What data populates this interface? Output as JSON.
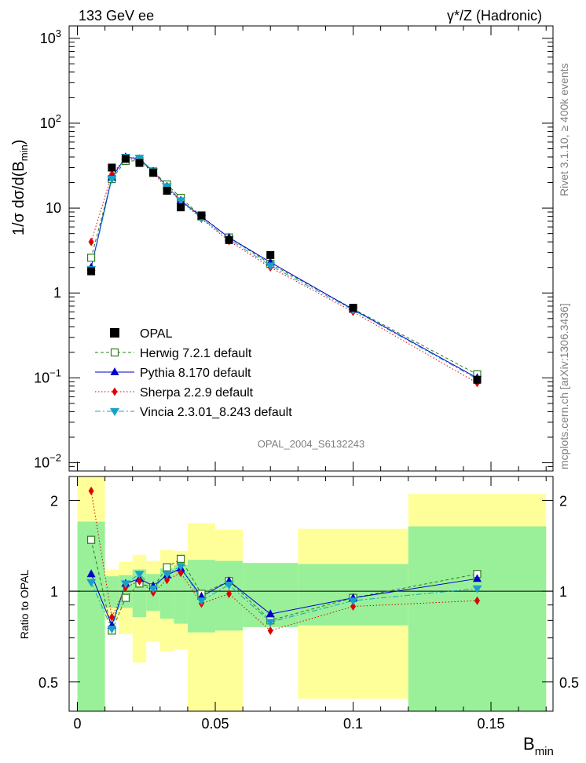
{
  "header": {
    "left": "133 GeV ee",
    "right": "γ*/Z (Hadronic)"
  },
  "side": {
    "rivet": "Rivet 3.1.10, ≥ 400k events",
    "source": "mcplots.cern.ch [arXiv:1306.3436]"
  },
  "analysis_label": "OPAL_2004_S6132243",
  "chart_data": [
    {
      "type": "scatter",
      "panel": "main",
      "ylabel": "1/σ dσ/d(B_min)",
      "xlabel": "B_min",
      "yscale": "log",
      "ylim": [
        0.008,
        1400
      ],
      "xlim": [
        -0.003,
        0.1725
      ],
      "yticks": [
        {
          "v": 0.01,
          "base": "10",
          "exp": "−2"
        },
        {
          "v": 0.1,
          "base": "10",
          "exp": "−1"
        },
        {
          "v": 1,
          "base": "1",
          "exp": ""
        },
        {
          "v": 10,
          "base": "10",
          "exp": ""
        },
        {
          "v": 100,
          "base": "10",
          "exp": "2"
        },
        {
          "v": 1000,
          "base": "10",
          "exp": "3"
        }
      ],
      "legend_position": "bottom-left",
      "series": [
        {
          "name": "OPAL",
          "color": "#000000",
          "marker": "square-filled",
          "line": "none",
          "x": [
            0.005,
            0.0125,
            0.0175,
            0.0225,
            0.0275,
            0.0325,
            0.0375,
            0.045,
            0.055,
            0.07,
            0.1,
            0.145
          ],
          "y": [
            1.8,
            30,
            38,
            34,
            26,
            16,
            10.2,
            8.2,
            4.2,
            2.8,
            0.67,
            0.095
          ]
        },
        {
          "name": "Herwig 7.2.1 default",
          "color": "#2e7d1c",
          "marker": "square-open",
          "line": "dashed",
          "x": [
            0.005,
            0.0125,
            0.0175,
            0.0225,
            0.0275,
            0.0325,
            0.0375,
            0.045,
            0.055,
            0.07,
            0.1,
            0.145
          ],
          "y": [
            2.6,
            22,
            36,
            36,
            27,
            19,
            13.2,
            8.0,
            4.5,
            2.2,
            0.65,
            0.11
          ]
        },
        {
          "name": "Pythia 8.170 default",
          "color": "#0000cc",
          "marker": "triangle-up",
          "line": "solid",
          "x": [
            0.005,
            0.0125,
            0.0175,
            0.0225,
            0.0275,
            0.0325,
            0.0375,
            0.045,
            0.055,
            0.07,
            0.1,
            0.145
          ],
          "y": [
            2.0,
            23,
            40,
            38,
            27,
            18,
            12.3,
            7.9,
            4.5,
            2.3,
            0.64,
            0.1
          ]
        },
        {
          "name": "Sherpa 2.2.9 default",
          "color": "#dd0000",
          "marker": "diamond",
          "line": "dotted",
          "x": [
            0.005,
            0.0125,
            0.0175,
            0.0225,
            0.0275,
            0.0325,
            0.0375,
            0.045,
            0.055,
            0.07,
            0.1,
            0.145
          ],
          "y": [
            4.0,
            25,
            39,
            36,
            26,
            17,
            12.1,
            7.5,
            4.1,
            2.0,
            0.6,
            0.087
          ]
        },
        {
          "name": "Vincia 2.3.01_8.243 default",
          "color": "#1aa0c8",
          "marker": "triangle-down",
          "line": "dashdot",
          "x": [
            0.005,
            0.0125,
            0.0175,
            0.0225,
            0.0275,
            0.0325,
            0.0375,
            0.045,
            0.055,
            0.07,
            0.1,
            0.145
          ],
          "y": [
            1.9,
            22,
            40,
            39,
            27,
            18,
            12.3,
            7.6,
            4.3,
            2.1,
            0.63,
            0.097
          ]
        }
      ]
    },
    {
      "type": "scatter",
      "panel": "ratio",
      "ylabel": "Ratio to OPAL",
      "xlabel": "B_min",
      "yscale": "log",
      "ylim": [
        0.4,
        2.4
      ],
      "xlim": [
        -0.003,
        0.1725
      ],
      "yticks": [
        {
          "v": 0.5,
          "label": "0.5"
        },
        {
          "v": 1,
          "label": "1"
        },
        {
          "v": 2,
          "label": "2"
        }
      ],
      "xticks": [
        {
          "v": 0,
          "label": "0"
        },
        {
          "v": 0.05,
          "label": "0.05"
        },
        {
          "v": 0.1,
          "label": "0.1"
        },
        {
          "v": 0.15,
          "label": "0.15"
        }
      ],
      "uncertainty_bands": [
        {
          "x0": 0.0,
          "x1": 0.01,
          "stat_lo": 0.4,
          "stat_hi": 1.7,
          "total_lo": 0.4,
          "total_hi": 2.4
        },
        {
          "x0": 0.01,
          "x1": 0.015,
          "stat_lo": 0.88,
          "stat_hi": 1.12,
          "total_lo": 0.8,
          "total_hi": 1.18
        },
        {
          "x0": 0.015,
          "x1": 0.02,
          "stat_lo": 0.88,
          "stat_hi": 1.13,
          "total_lo": 0.72,
          "total_hi": 1.25
        },
        {
          "x0": 0.02,
          "x1": 0.025,
          "stat_lo": 0.82,
          "stat_hi": 1.18,
          "total_lo": 0.58,
          "total_hi": 1.32
        },
        {
          "x0": 0.025,
          "x1": 0.03,
          "stat_lo": 0.86,
          "stat_hi": 1.14,
          "total_lo": 0.68,
          "total_hi": 1.26
        },
        {
          "x0": 0.03,
          "x1": 0.035,
          "stat_lo": 0.81,
          "stat_hi": 1.19,
          "total_lo": 0.63,
          "total_hi": 1.37
        },
        {
          "x0": 0.035,
          "x1": 0.04,
          "stat_lo": 0.78,
          "stat_hi": 1.22,
          "total_lo": 0.64,
          "total_hi": 1.36
        },
        {
          "x0": 0.04,
          "x1": 0.05,
          "stat_lo": 0.73,
          "stat_hi": 1.27,
          "total_lo": 0.4,
          "total_hi": 1.68
        },
        {
          "x0": 0.05,
          "x1": 0.06,
          "stat_lo": 0.74,
          "stat_hi": 1.26,
          "total_lo": 0.4,
          "total_hi": 1.6
        },
        {
          "x0": 0.06,
          "x1": 0.08,
          "stat_lo": 0.76,
          "stat_hi": 1.24,
          "total_lo": 0.76,
          "total_hi": 1.24
        },
        {
          "x0": 0.08,
          "x1": 0.12,
          "stat_lo": 0.77,
          "stat_hi": 1.23,
          "total_lo": 0.44,
          "total_hi": 1.61
        },
        {
          "x0": 0.12,
          "x1": 0.17,
          "stat_lo": 0.4,
          "stat_hi": 1.64,
          "total_lo": 0.4,
          "total_hi": 2.1
        }
      ],
      "series": [
        {
          "name": "Herwig 7.2.1 default",
          "color": "#2e7d1c",
          "marker": "square-open",
          "line": "dashed",
          "x": [
            0.005,
            0.0125,
            0.0175,
            0.0225,
            0.0275,
            0.0325,
            0.0375,
            0.045,
            0.055,
            0.07,
            0.1,
            0.145
          ],
          "y": [
            1.48,
            0.74,
            0.95,
            1.06,
            1.03,
            1.2,
            1.28,
            0.98,
            1.08,
            0.8,
            0.95,
            1.14
          ]
        },
        {
          "name": "Pythia 8.170 default",
          "color": "#0000cc",
          "marker": "triangle-up",
          "line": "solid",
          "x": [
            0.005,
            0.0125,
            0.0175,
            0.0225,
            0.0275,
            0.0325,
            0.0375,
            0.045,
            0.055,
            0.07,
            0.1,
            0.145
          ],
          "y": [
            1.14,
            0.77,
            1.06,
            1.1,
            1.04,
            1.13,
            1.19,
            0.96,
            1.08,
            0.84,
            0.95,
            1.1
          ]
        },
        {
          "name": "Sherpa 2.2.9 default",
          "color": "#dd0000",
          "marker": "diamond",
          "line": "dotted",
          "x": [
            0.005,
            0.0125,
            0.0175,
            0.0225,
            0.0275,
            0.0325,
            0.0375,
            0.045,
            0.055,
            0.07,
            0.1,
            0.145
          ],
          "y": [
            2.15,
            0.82,
            1.03,
            1.08,
            0.99,
            1.09,
            1.15,
            0.91,
            0.98,
            0.74,
            0.89,
            0.93
          ]
        },
        {
          "name": "Vincia 2.3.01_8.243 default",
          "color": "#1aa0c8",
          "marker": "triangle-down",
          "line": "dashdot",
          "x": [
            0.005,
            0.0125,
            0.0175,
            0.0225,
            0.0275,
            0.0325,
            0.0375,
            0.045,
            0.055,
            0.07,
            0.1,
            0.145
          ],
          "y": [
            1.07,
            0.75,
            1.06,
            1.14,
            1.02,
            1.14,
            1.21,
            0.93,
            1.05,
            0.79,
            0.93,
            1.02
          ]
        }
      ]
    }
  ]
}
